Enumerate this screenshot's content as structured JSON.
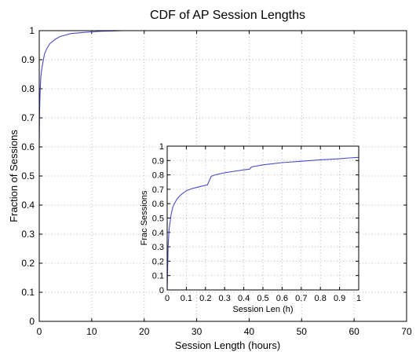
{
  "chart_data": [
    {
      "type": "line",
      "title": "CDF of AP Session Lengths",
      "xlabel": "Session Length (hours)",
      "ylabel": "Fraction of Sessions",
      "xlim": [
        0,
        70
      ],
      "ylim": [
        0,
        1
      ],
      "xticks": [
        0,
        10,
        20,
        30,
        40,
        50,
        60,
        70
      ],
      "yticks": [
        0,
        0.1,
        0.2,
        0.3,
        0.4,
        0.5,
        0.6,
        0.7,
        0.8,
        0.9,
        1
      ],
      "grid": true,
      "series": [
        {
          "color": "#4a4ac8",
          "x": [
            0,
            0.05,
            0.1,
            0.2,
            0.3,
            0.5,
            0.8,
            1,
            1.5,
            2,
            3,
            4,
            5,
            6,
            8,
            10,
            12,
            14,
            16,
            17
          ],
          "y": [
            0.6,
            0.7,
            0.75,
            0.8,
            0.84,
            0.87,
            0.9,
            0.92,
            0.94,
            0.955,
            0.97,
            0.98,
            0.985,
            0.99,
            0.993,
            0.996,
            0.998,
            0.999,
            1.0,
            1.0
          ]
        }
      ]
    },
    {
      "type": "line",
      "title": "",
      "xlabel": "Session Len (h)",
      "ylabel": "Frac Sessions",
      "xlim": [
        0,
        1
      ],
      "ylim": [
        0,
        1
      ],
      "xticks": [
        0,
        0.1,
        0.2,
        0.3,
        0.4,
        0.5,
        0.6,
        0.7,
        0.8,
        0.9,
        1
      ],
      "yticks": [
        0,
        0.1,
        0.2,
        0.3,
        0.4,
        0.5,
        0.6,
        0.7,
        0.8,
        0.9,
        1
      ],
      "grid": true,
      "series": [
        {
          "color": "#4a4ac8",
          "x": [
            0,
            0.003,
            0.005,
            0.01,
            0.02,
            0.03,
            0.05,
            0.07,
            0.1,
            0.13,
            0.16,
            0.19,
            0.21,
            0.22,
            0.23,
            0.25,
            0.3,
            0.35,
            0.4,
            0.43,
            0.44,
            0.5,
            0.6,
            0.7,
            0.8,
            0.9,
            0.95,
            1
          ],
          "y": [
            0,
            0.18,
            0.3,
            0.42,
            0.52,
            0.58,
            0.63,
            0.66,
            0.69,
            0.705,
            0.715,
            0.725,
            0.73,
            0.76,
            0.79,
            0.8,
            0.815,
            0.825,
            0.835,
            0.84,
            0.855,
            0.87,
            0.885,
            0.895,
            0.905,
            0.912,
            0.918,
            0.922
          ]
        }
      ]
    }
  ]
}
